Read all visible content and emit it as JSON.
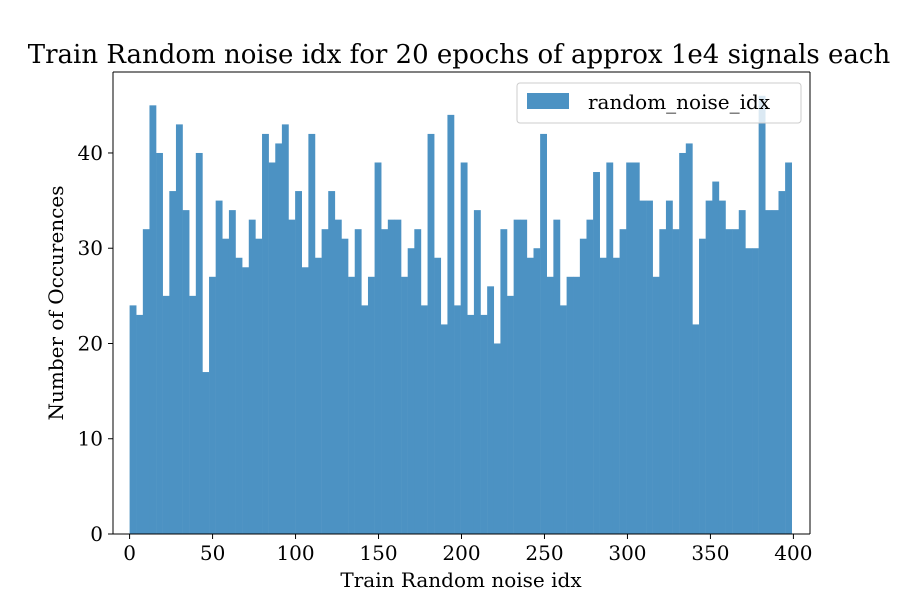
{
  "chart_data": {
    "type": "bar",
    "title": "Train Random noise idx for 20 epochs of approx 1e4 signals each",
    "xlabel": "Train Random noise idx",
    "ylabel": "Number of Occurences",
    "xlim": [
      -10,
      410
    ],
    "ylim": [
      0,
      48.5
    ],
    "xticks": [
      0,
      50,
      100,
      150,
      200,
      250,
      300,
      350,
      400
    ],
    "yticks": [
      0,
      10,
      20,
      30,
      40
    ],
    "bin_start": 0,
    "bin_width": 3.99,
    "series": [
      {
        "name": "random_noise_idx",
        "color": "#4c92c3",
        "values": [
          24,
          23,
          32,
          45,
          40,
          25,
          36,
          43,
          34,
          25,
          40,
          17,
          27,
          35,
          31,
          34,
          29,
          28,
          33,
          31,
          42,
          39,
          41,
          43,
          33,
          36,
          28,
          42,
          29,
          32,
          36,
          33,
          31,
          27,
          32,
          24,
          27,
          39,
          32,
          33,
          33,
          27,
          30,
          32,
          24,
          42,
          29,
          22,
          44,
          24,
          39,
          23,
          34,
          23,
          26,
          20,
          32,
          25,
          33,
          33,
          29,
          30,
          42,
          27,
          33,
          24,
          27,
          27,
          31,
          33,
          38,
          29,
          39,
          29,
          32,
          39,
          39,
          35,
          35,
          27,
          32,
          35,
          32,
          40,
          41,
          22,
          31,
          35,
          37,
          35,
          32,
          32,
          34,
          30,
          30,
          46,
          34,
          34,
          36,
          39
        ]
      }
    ],
    "legend": {
      "position": "top-right"
    },
    "grid": false
  }
}
